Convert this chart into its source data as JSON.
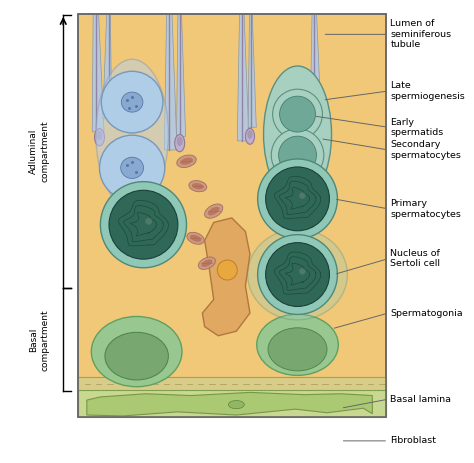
{
  "bg_white": "#FFFFFF",
  "tissue_tan": "#F0C878",
  "tissue_tan2": "#EEC87A",
  "basal_lamina_color": "#D8CC88",
  "fibroblast_bg": "#C8D890",
  "fibroblast_cell": "#A8C870",
  "sertoli_tan": "#EEC878",
  "sperm_tail_inner": "#8878A0",
  "sperm_tail_outer": "#B0A8C0",
  "late_sperm_head": "#C0AABB",
  "early_spermatid_cell": "#A0C0E0",
  "early_spermatid_nuc": "#7098C0",
  "secondary_cell": "#A0C8E0",
  "secondary_nuc": "#7098C0",
  "primary_outer": "#88C0B0",
  "primary_cytoplasm": "#A8D8C8",
  "primary_nucleus_bg": "#48988A",
  "primary_nucleus_dark": "#1A3A30",
  "sertoli_nuc_outer": "#88C0B0",
  "sertoli_nuc_inner": "#48988A",
  "sertoli_nuc_dark": "#1A3A30",
  "spermatogonia_outer": "#98C898",
  "spermatogonia_inner": "#78A878",
  "orange_cell": "#E0A060",
  "orange_nuc": "#D08840",
  "mito_color": "#C89080",
  "mito_stripe": "#A87060",
  "border_color": "#888888",
  "label_line_color": "#666666",
  "labels": {
    "lumen": "Lumen of\nseminiferous\ntubule",
    "late_sperm": "Late\nspermiogenesis",
    "early_spermatids": "Early\nspermatids",
    "secondary": "Secondary\nspermatocytes",
    "primary": "Primary\nspermatocytes",
    "sertoli_nucleus": "Nucleus of\nSertoli cell",
    "spermatogonia": "Spermatogonia",
    "basal_lamina": "Basal lamina",
    "fibroblast": "Fibroblast",
    "adluminal": "Adluminal\ncompartment",
    "basal": "Basal\ncompartment"
  }
}
